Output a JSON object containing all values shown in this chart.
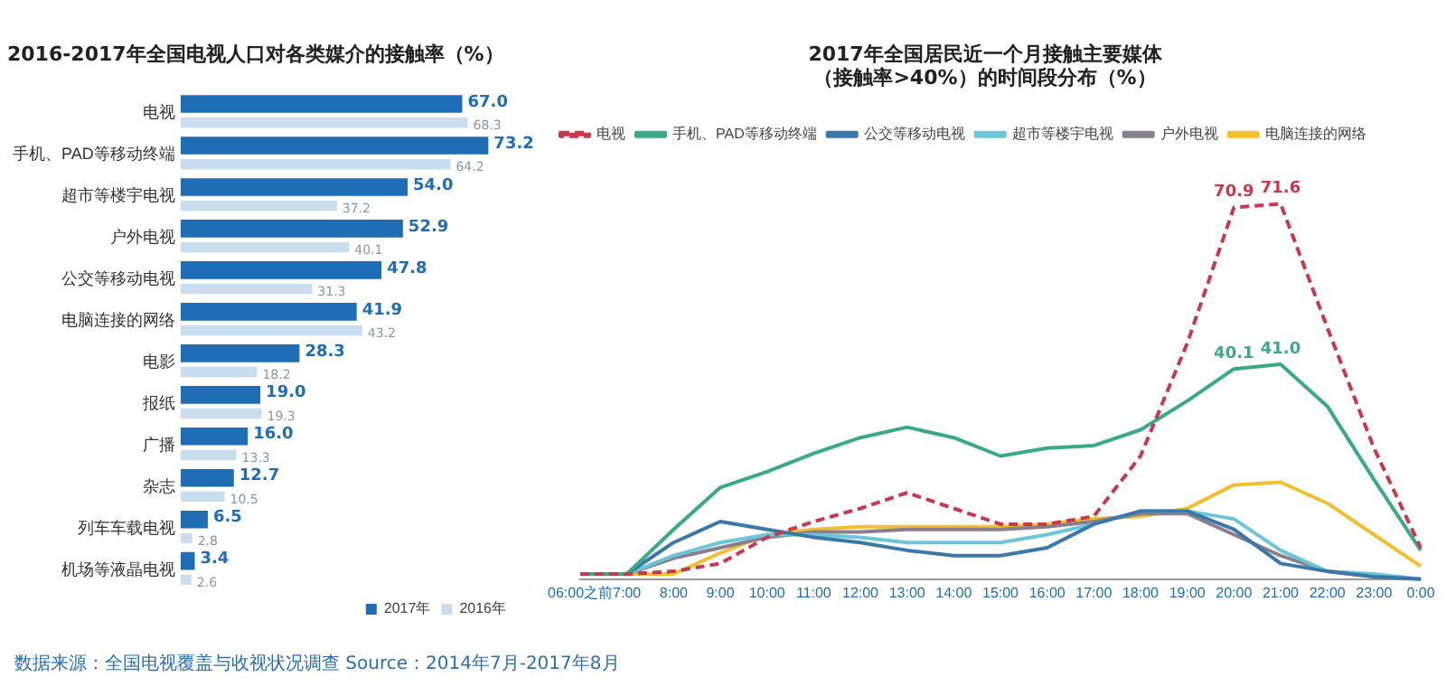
{
  "chart_data": [
    {
      "type": "bar",
      "orientation": "horizontal",
      "title": "2016-2017年全国电视人口对各类媒介的接触率（%）",
      "categories": [
        "电视",
        "手机、PAD等移动终端",
        "超市等楼宇电视",
        "户外电视",
        "公交等移动电视",
        "电脑连接的网络",
        "电影",
        "报纸",
        "广播",
        "杂志",
        "列车车载电视",
        "机场等液晶电视"
      ],
      "series": [
        {
          "name": "2017年",
          "color": "#1f6db5",
          "values": [
            67.0,
            73.2,
            54.0,
            52.9,
            47.8,
            41.9,
            28.3,
            19.0,
            16.0,
            12.7,
            6.5,
            3.4
          ],
          "value_labels": [
            "67.0",
            "73.2",
            "54.0",
            "52.9",
            "47.8",
            "41.9",
            "28.3",
            "19.0",
            "16.0",
            "12.7",
            "6.5",
            "3.4"
          ]
        },
        {
          "name": "2016年",
          "color": "#c9ddef",
          "values": [
            68.3,
            64.2,
            37.2,
            40.1,
            31.3,
            43.2,
            18.2,
            19.3,
            13.3,
            10.5,
            2.8,
            2.6
          ],
          "value_labels": [
            "68.3",
            "64.2",
            "37.2",
            "40.1",
            "31.3",
            "43.2",
            "18.2",
            "19.3",
            "13.3",
            "10.5",
            "2.8",
            "2.6"
          ]
        }
      ],
      "tick_labels": "y",
      "grid": false,
      "legend": "bottom right",
      "annotations": [
        "数据来源：全国电视覆盖与收视状况调查 Source：2014年7月-2017年8月"
      ]
    },
    {
      "type": "line",
      "title": "2017年全国居民近一个月接触主要媒体（接触率>40%）的时间段分布（%）",
      "categories": [
        "06:00之前",
        "7:00",
        "8:00",
        "9:00",
        "10:00",
        "11:00",
        "12:00",
        "13:00",
        "14:00",
        "15:00",
        "16:00",
        "17:00",
        "18:00",
        "19:00",
        "20:00",
        "21:00",
        "22:00",
        "23:00",
        "0:00"
      ],
      "series": [
        {
          "name": "电视",
          "color": "#c8394b",
          "line_style": "dashed",
          "values": [
            1,
            1,
            1.5,
            3,
            8,
            11,
            13.5,
            16.5,
            13.5,
            10.5,
            10.5,
            12,
            23.5,
            45,
            70.9,
            71.6,
            48,
            25,
            6
          ],
          "value_labels": [
            null,
            null,
            null,
            null,
            null,
            null,
            null,
            null,
            null,
            null,
            null,
            null,
            null,
            null,
            "70.9",
            "71.6",
            null,
            null,
            null
          ]
        },
        {
          "name": "手机、PAD等移动终端",
          "color": "#3aa98a",
          "values": [
            1,
            1,
            9.5,
            17.5,
            20.5,
            24,
            27,
            29,
            27,
            23.5,
            25,
            25.5,
            28.5,
            34,
            40.1,
            41.0,
            33,
            19,
            5.5
          ],
          "value_labels": [
            null,
            null,
            null,
            null,
            null,
            null,
            null,
            null,
            null,
            null,
            null,
            null,
            null,
            null,
            "40.1",
            "41.0",
            null,
            null,
            null
          ]
        },
        {
          "name": "公交等移动电视",
          "color": "#3b78a8",
          "values": [
            1,
            1,
            7,
            11,
            9.5,
            8,
            7,
            5.5,
            4.5,
            4.5,
            6,
            10.5,
            13,
            13,
            9.5,
            3,
            1.5,
            0.5,
            0
          ]
        },
        {
          "name": "超市等楼宇电视",
          "color": "#6cc6d8",
          "values": [
            1,
            1,
            4.5,
            7,
            8.5,
            8.5,
            8,
            7,
            7,
            7,
            8.5,
            10.5,
            13,
            13,
            11.5,
            5.5,
            1.5,
            1,
            0
          ]
        },
        {
          "name": "户外电视",
          "color": "#8a7f8f",
          "values": [
            1,
            1,
            4,
            6,
            8,
            9,
            9,
            9.5,
            9.5,
            9.5,
            10,
            11,
            12.5,
            12.5,
            8.5,
            4.5,
            1.5,
            0.5,
            0
          ]
        },
        {
          "name": "电脑连接的网络",
          "color": "#f0c030",
          "values": [
            1,
            1,
            1,
            5,
            8.5,
            9.5,
            10,
            10,
            10,
            10,
            10.5,
            11.5,
            12,
            13.5,
            18,
            18.5,
            14.5,
            8.5,
            2.5
          ]
        }
      ],
      "tick_labels": "x",
      "grid": false,
      "legend": "top left"
    }
  ]
}
